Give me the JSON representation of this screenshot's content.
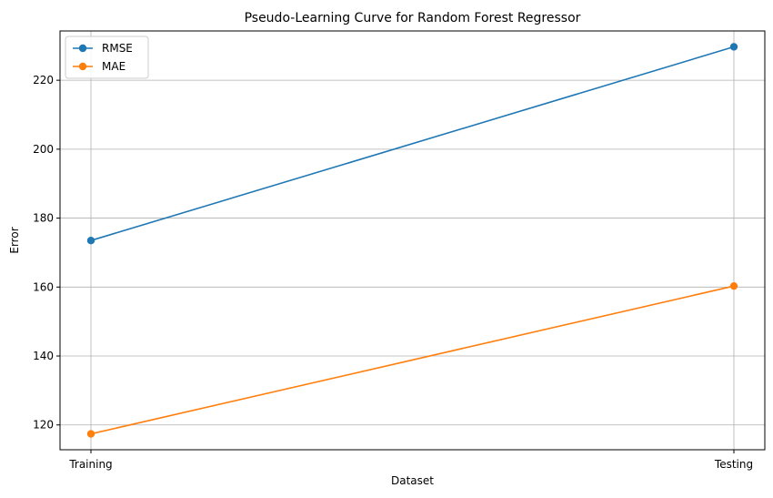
{
  "chart_data": {
    "type": "line",
    "title": "Pseudo-Learning Curve for Random Forest Regressor",
    "xlabel": "Dataset",
    "ylabel": "Error",
    "categories": [
      "Training",
      "Testing"
    ],
    "series": [
      {
        "name": "RMSE",
        "values": [
          173.5,
          229.7
        ],
        "color": "#1f77b4"
      },
      {
        "name": "MAE",
        "values": [
          117.4,
          160.3
        ],
        "color": "#ff7f0e"
      }
    ],
    "ylim": [
      112.8,
      234.3
    ],
    "yticks": [
      120,
      140,
      160,
      180,
      200,
      220
    ],
    "grid": true,
    "legend_position": "top-left"
  }
}
